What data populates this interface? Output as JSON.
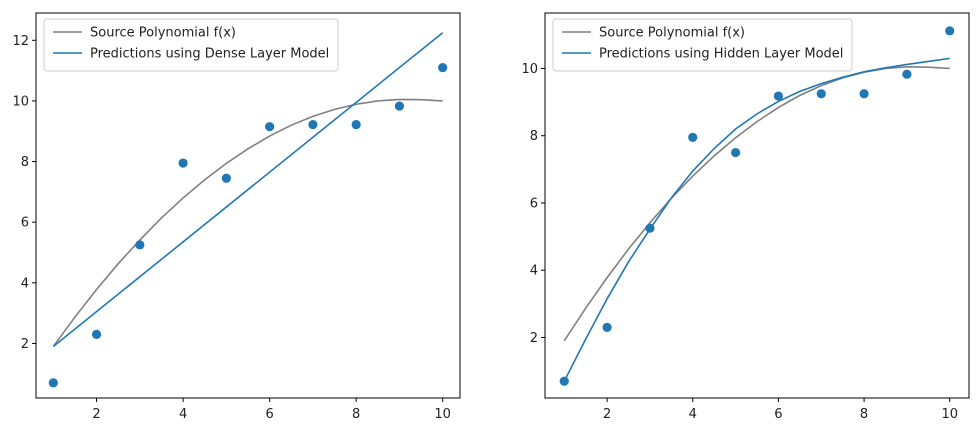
{
  "chart_data": [
    {
      "type": "line",
      "title": "",
      "xlabel": "",
      "ylabel": "",
      "xlim": [
        0.6,
        10.4
      ],
      "ylim": [
        0.2,
        12.9
      ],
      "xticks": [
        2,
        4,
        6,
        8,
        10
      ],
      "yticks": [
        2,
        4,
        6,
        8,
        10,
        12
      ],
      "grid": false,
      "legend_position": "upper-left",
      "series": [
        {
          "name": "Source Polynomial f(x)",
          "kind": "line",
          "color": "#808080",
          "x": [
            1,
            1.5,
            2,
            2.5,
            3,
            3.5,
            4,
            4.5,
            5,
            5.5,
            6,
            6.5,
            7,
            7.5,
            8,
            8.5,
            9,
            9.5,
            10
          ],
          "y": [
            1.9,
            2.87,
            3.78,
            4.63,
            5.41,
            6.14,
            6.8,
            7.4,
            7.94,
            8.42,
            8.84,
            9.2,
            9.49,
            9.72,
            9.89,
            10.0,
            10.05,
            10.04,
            10.0
          ]
        },
        {
          "name": "Predictions using Dense Layer Model",
          "kind": "line",
          "color": "#1f77b4",
          "x": [
            1,
            10
          ],
          "y": [
            1.9,
            12.25
          ]
        },
        {
          "kind": "scatter",
          "color": "#1f77b4",
          "x": [
            1,
            2,
            3,
            4,
            5,
            6,
            7,
            8,
            9,
            10
          ],
          "y": [
            0.7,
            2.3,
            5.25,
            7.95,
            7.45,
            9.15,
            9.22,
            9.22,
            9.83,
            11.1
          ]
        }
      ]
    },
    {
      "type": "line",
      "title": "",
      "xlabel": "",
      "ylabel": "",
      "xlim": [
        0.55,
        10.45
      ],
      "ylim": [
        0.2,
        11.65
      ],
      "xticks": [
        2,
        4,
        6,
        8,
        10
      ],
      "yticks": [
        2,
        4,
        6,
        8,
        10
      ],
      "grid": false,
      "legend_position": "upper-left",
      "series": [
        {
          "name": "Source Polynomial f(x)",
          "kind": "line",
          "color": "#808080",
          "x": [
            1,
            1.5,
            2,
            2.5,
            3,
            3.5,
            4,
            4.5,
            5,
            5.5,
            6,
            6.5,
            7,
            7.5,
            8,
            8.5,
            9,
            9.5,
            10
          ],
          "y": [
            1.9,
            2.87,
            3.78,
            4.63,
            5.41,
            6.14,
            6.8,
            7.4,
            7.94,
            8.42,
            8.84,
            9.2,
            9.49,
            9.72,
            9.89,
            10.0,
            10.05,
            10.04,
            10.0
          ]
        },
        {
          "name": "Predictions using Hidden Layer Model",
          "kind": "line",
          "color": "#1f77b4",
          "x": [
            1,
            1.5,
            2,
            2.5,
            3,
            3.5,
            4,
            4.5,
            5,
            5.5,
            6,
            6.5,
            7,
            7.5,
            8,
            8.5,
            9,
            9.5,
            10
          ],
          "y": [
            0.7,
            1.95,
            3.15,
            4.25,
            5.22,
            6.15,
            6.95,
            7.62,
            8.2,
            8.65,
            9.02,
            9.32,
            9.55,
            9.74,
            9.9,
            10.02,
            10.12,
            10.21,
            10.3
          ]
        },
        {
          "kind": "scatter",
          "color": "#1f77b4",
          "x": [
            1,
            2,
            3,
            4,
            5,
            6,
            7,
            8,
            9,
            10
          ],
          "y": [
            0.7,
            2.3,
            5.25,
            7.95,
            7.5,
            9.18,
            9.25,
            9.25,
            9.83,
            11.12
          ]
        }
      ]
    }
  ]
}
